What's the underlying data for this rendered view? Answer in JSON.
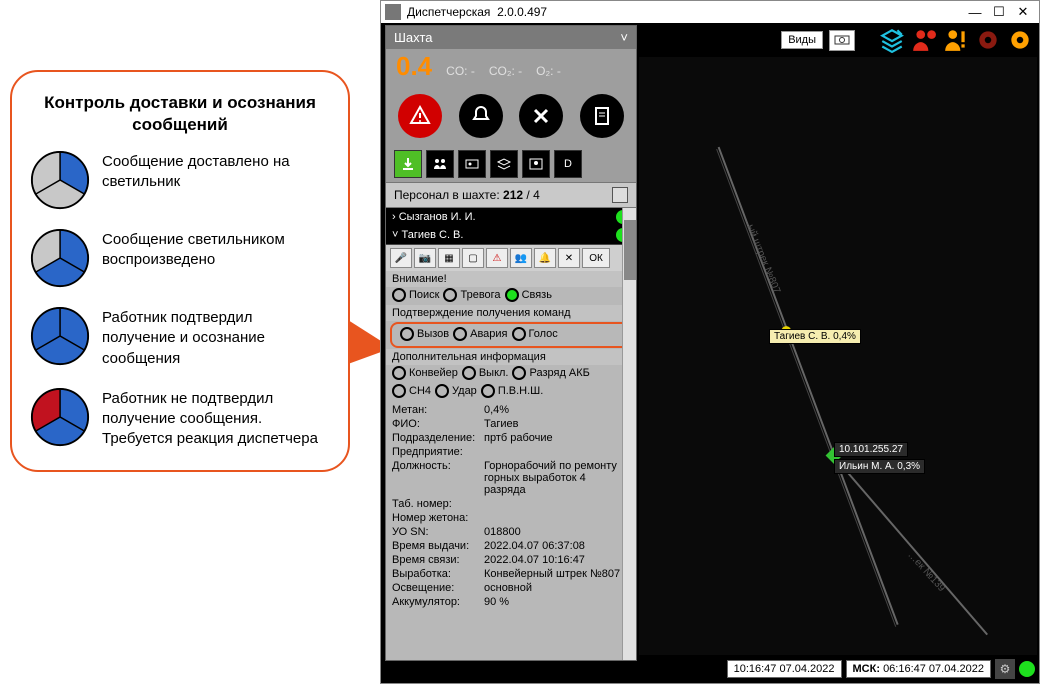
{
  "legend": {
    "title": "Контроль доставки и осознания сообщений",
    "rows": [
      {
        "colors": [
          "#c8c8c8",
          "#2a66c8",
          "#c8c8c8"
        ],
        "text": "Сообщение доставлено на светильник"
      },
      {
        "colors": [
          "#c8c8c8",
          "#2a66c8",
          "#2a66c8"
        ],
        "text": "Сообщение светильником воспроизведено"
      },
      {
        "colors": [
          "#2a66c8",
          "#2a66c8",
          "#2a66c8"
        ],
        "text": "Работник подтвердил получение и осознание сообщения"
      },
      {
        "colors": [
          "#c1121f",
          "#2a66c8",
          "#2a66c8"
        ],
        "text": "Работник не подтвердил получение сообщения. Требуется реакция диспетчера"
      }
    ],
    "pointer_color": "#e8551f"
  },
  "titlebar": {
    "app": "Диспетчерская",
    "version": "2.0.0.497"
  },
  "top_buttons": {
    "views": "Виды"
  },
  "top_icons": {
    "camera": "#555555",
    "layers": "#1fc1e0",
    "person_red": "#e22b1b",
    "person_excl": "#ffa000",
    "gear_dark": "#8a1a10",
    "gear_orange": "#ffa000"
  },
  "panel": {
    "title": "Шахта",
    "gas_value": "0.4",
    "gas": {
      "co": "CO: -",
      "co2": "CO₂: -",
      "o2": "O₂: -"
    }
  },
  "personnel_bar": {
    "label": "Персонал в шахте:",
    "count": "212",
    "sep": "/",
    "sub": "4"
  },
  "persons": {
    "p1": "› Сызганов И. И.",
    "p2": "˅ Тагиев С. В."
  },
  "sections": {
    "attention": "Внимание!",
    "attn_opts": {
      "search": "Поиск",
      "alarm": "Тревога",
      "conn": "Связь"
    },
    "confirm": "Подтверждение получения команд",
    "conf_opts": {
      "call": "Вызов",
      "crash": "Авария",
      "voice": "Голос"
    },
    "addinfo": "Дополнительная информация",
    "add_opts": {
      "conv": "Конвейер",
      "off": "Выкл.",
      "batt": "Разряд АКБ",
      "ch4": "CH4",
      "hit": "Удар",
      "pvnsh": "П.В.Н.Ш."
    }
  },
  "info": {
    "methane_k": "Метан:",
    "methane_v": "0,4%",
    "fio_k": "ФИО:",
    "fio_v": "Тагиев",
    "dept_k": "Подразделение:",
    "dept_v": "пртб рабочие",
    "ent_k": "Предприятие:",
    "ent_v": "",
    "pos_k": "Должность:",
    "pos_v": "Горнорабочий по ремонту горных выработок 4 разряда",
    "tab_k": "Таб. номер:",
    "tab_v": "",
    "token_k": "Номер жетона:",
    "token_v": "",
    "uo_k": "УО SN:",
    "uo_v": "018800",
    "issue_k": "Время выдачи:",
    "issue_v": "2022.04.07 06:37:08",
    "conn_k": "Время связи:",
    "conn_v": "2022.04.07 10:16:47",
    "work_k": "Выработка:",
    "work_v": "Конвейерный штрек №807",
    "light_k": "Освещение:",
    "light_v": "основной",
    "acc_k": "Аккумулятор:",
    "acc_v": "90 %"
  },
  "map": {
    "line_color": "#666",
    "marker_yellow": "#e8d400",
    "marker_green": "#33c233",
    "label_track": "…ый штрек №807",
    "label_track2": "…ек №139",
    "tag1": "Тагиев С. В. 0,4%",
    "tag2_ip": "10.101.255.27",
    "tag2_name": "Ильин М. А. 0,3%"
  },
  "status": {
    "local": "10:16:47 07.04.2022",
    "msk_lbl": "МСК:",
    "msk": "06:16:47 07.04.2022"
  },
  "ok_label": "ОК"
}
